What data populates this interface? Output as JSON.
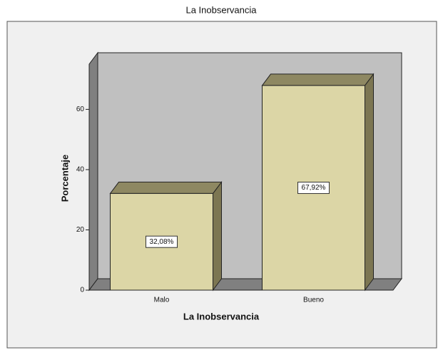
{
  "chart_data": {
    "type": "bar3d",
    "title": "La Inobservancia",
    "x_label": "La Inobservancia",
    "y_label": "Porcentaje",
    "categories": [
      "Malo",
      "Bueno"
    ],
    "values": [
      32.08,
      67.92
    ],
    "value_labels": [
      "32,08%",
      "67,92%"
    ],
    "color": "#dcd6a6",
    "ylim": [
      0,
      75
    ],
    "yticks": [
      0,
      20,
      40,
      60
    ]
  }
}
